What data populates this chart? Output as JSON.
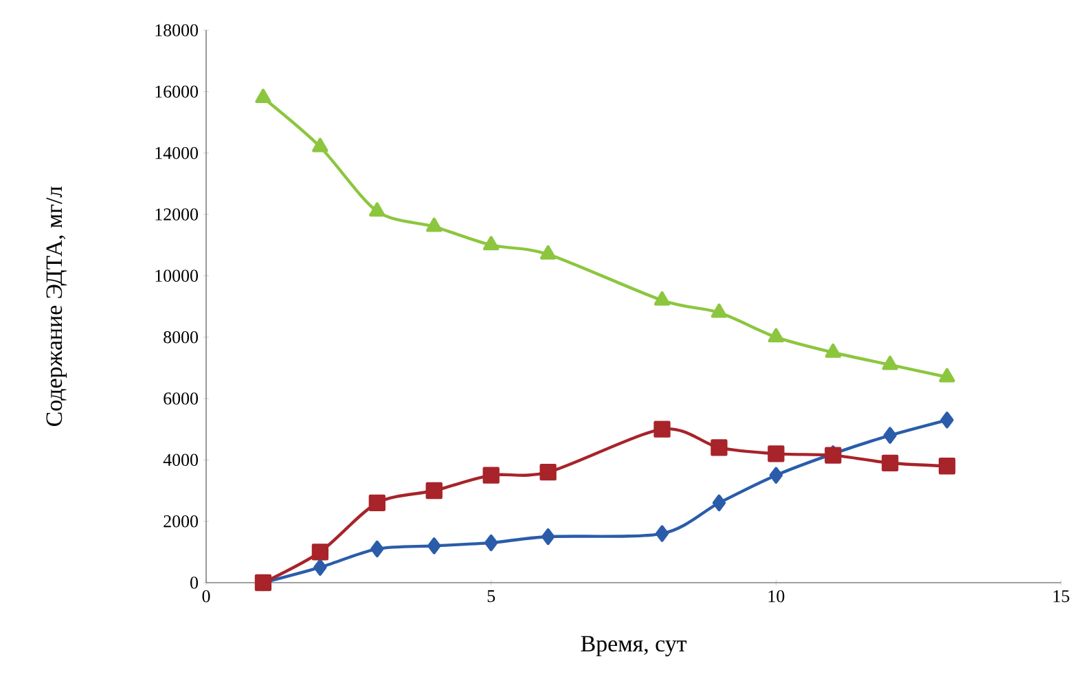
{
  "chart_data": {
    "type": "line",
    "xlabel": "Время, сут",
    "ylabel": "Содержание ЭДТА, мг/л",
    "x": [
      1,
      2,
      3,
      4,
      5,
      6,
      8,
      9,
      10,
      11,
      12,
      13
    ],
    "series": [
      {
        "color": "#2a5caa",
        "marker": "diamond",
        "values": [
          0,
          500,
          1100,
          1200,
          1300,
          1500,
          1600,
          2600,
          3500,
          4200,
          4800,
          5300
        ]
      },
      {
        "color": "#a8232a",
        "marker": "square",
        "values": [
          0,
          1000,
          2600,
          3000,
          3500,
          3600,
          5000,
          4400,
          4200,
          4150,
          3900,
          3800
        ]
      },
      {
        "color": "#8cc63f",
        "marker": "triangle",
        "values": [
          15800,
          14200,
          12100,
          11600,
          11000,
          10700,
          9200,
          8800,
          8000,
          7500,
          7100,
          6700
        ]
      }
    ],
    "xlim": [
      0,
      15
    ],
    "xticks": [
      0,
      5,
      10,
      15
    ],
    "ylim": [
      0,
      18000
    ],
    "yticks": [
      0,
      2000,
      4000,
      6000,
      8000,
      10000,
      12000,
      14000,
      16000,
      18000
    ],
    "grid": false,
    "line_style": "solid"
  }
}
